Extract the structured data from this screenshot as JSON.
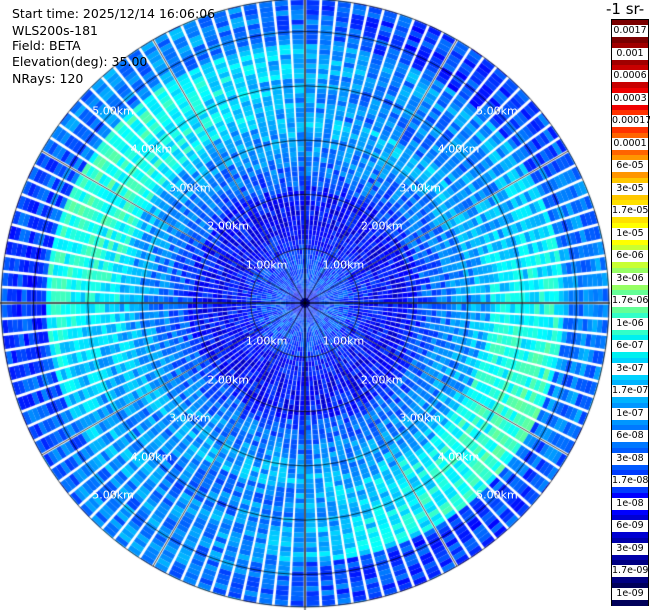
{
  "info": {
    "start_time": "Start time: 2025/12/14 16:06:06",
    "instrument": "WLS200s-181",
    "field": "Field: BETA",
    "elevation": "Elevation(deg): 35.00",
    "nrays": "NRays: 120"
  },
  "colorbar": {
    "title": "-1 sr-",
    "labels": [
      "0.0017",
      "0.001",
      "0.0006",
      "0.0003",
      "0.00017",
      "0.0001",
      "6e-05",
      "3e-05",
      "1.7e-05",
      "1e-05",
      "6e-06",
      "3e-06",
      "1.7e-06",
      "1e-06",
      "6e-07",
      "3e-07",
      "1.7e-07",
      "1e-07",
      "6e-08",
      "3e-08",
      "1.7e-08",
      "1e-08",
      "6e-09",
      "3e-09",
      "1.7e-09",
      "1e-09"
    ],
    "colors": [
      "#7a0000",
      "#a00000",
      "#c80000",
      "#f00000",
      "#ff3200",
      "#ff6400",
      "#ff9600",
      "#ffc800",
      "#ffe100",
      "#ffff00",
      "#c8ff32",
      "#96ff64",
      "#64ff96",
      "#32ffc8",
      "#00f0f0",
      "#00d2ff",
      "#00b4ff",
      "#0096ff",
      "#0078ff",
      "#005aff",
      "#003cff",
      "#0000ff",
      "#0000d2",
      "#0000aa",
      "#000082",
      "#00005a"
    ]
  },
  "chart_data": {
    "type": "heatmap",
    "projection": "polar (PPI scan)",
    "field": "BETA",
    "n_rays": 120,
    "range_rings_km": [
      1.0,
      2.0,
      3.0,
      4.0,
      5.0
    ],
    "ring_labels": [
      "1.00km",
      "2.00km",
      "3.00km",
      "4.00km",
      "5.00km"
    ],
    "max_range_km": 5.6,
    "spoke_step_deg": 30,
    "value_bands": [
      {
        "range_km": [
          0.0,
          2.2
        ],
        "level": "1e-08 to 1e-09"
      },
      {
        "range_km": [
          2.2,
          3.4
        ],
        "level": "1e-08 to 3e-08"
      },
      {
        "range_km": [
          3.4,
          4.8
        ],
        "level": "3e-08 to 1.7e-07"
      },
      {
        "range_km": [
          4.8,
          5.6
        ],
        "level": "1e-08 to 6e-08"
      }
    ]
  }
}
